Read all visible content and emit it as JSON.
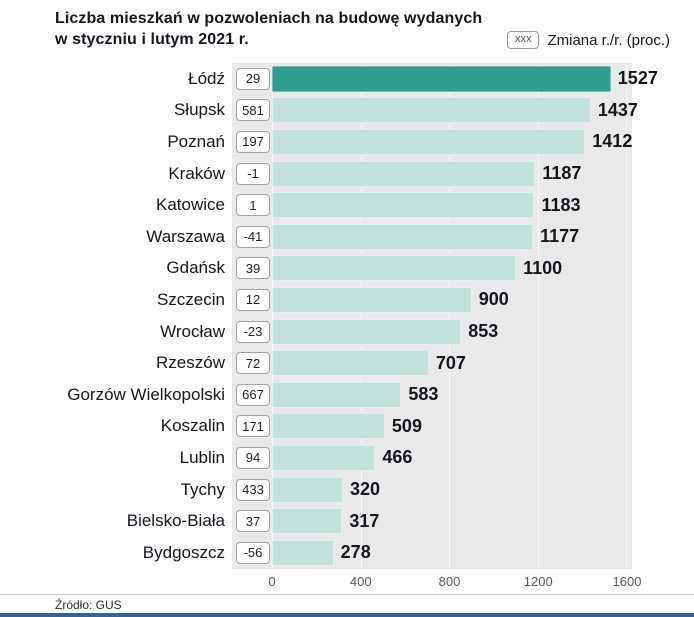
{
  "title": {
    "line1": "Liczba mieszkań w pozwoleniach na budowę wydanych",
    "line2": "w styczniu i lutym 2021 r."
  },
  "legend": {
    "box_label": "xxx",
    "label": "Zmiana r./r. (proc.)"
  },
  "footer": {
    "source": "Źródło: GUS"
  },
  "chart_data": {
    "type": "bar",
    "orientation": "horizontal",
    "title": "Liczba mieszkań w pozwoleniach na budowę wydanych w styczniu i lutym 2021 r.",
    "xlabel": "",
    "ylabel": "",
    "categories": [
      "Łódź",
      "Słupsk",
      "Poznań",
      "Kraków",
      "Katowice",
      "Warszawa",
      "Gdańsk",
      "Szczecin",
      "Wrocław",
      "Rzeszów",
      "Gorzów Wielkopolski",
      "Koszalin",
      "Lublin",
      "Tychy",
      "Bielsko-Biała",
      "Bydgoszcz"
    ],
    "values": [
      1527,
      1437,
      1412,
      1187,
      1183,
      1177,
      1100,
      900,
      853,
      707,
      583,
      509,
      466,
      320,
      317,
      278
    ],
    "changes_yoy_pct": [
      29,
      581,
      197,
      -1,
      1,
      -41,
      39,
      12,
      -23,
      72,
      667,
      171,
      94,
      433,
      37,
      -56
    ],
    "xlim": [
      0,
      1600
    ],
    "x_ticks": [
      0,
      400,
      800,
      1200,
      1600
    ],
    "highlight_index": 0,
    "legend_position": "top-right",
    "grid": "faint vertical gridlines at ticks",
    "colors": {
      "bar": "#c2e1da",
      "bar_highlight": "#2e9d92",
      "plot_bg": "#e9e9e9",
      "accent_bottom_bar": "#356397"
    }
  }
}
